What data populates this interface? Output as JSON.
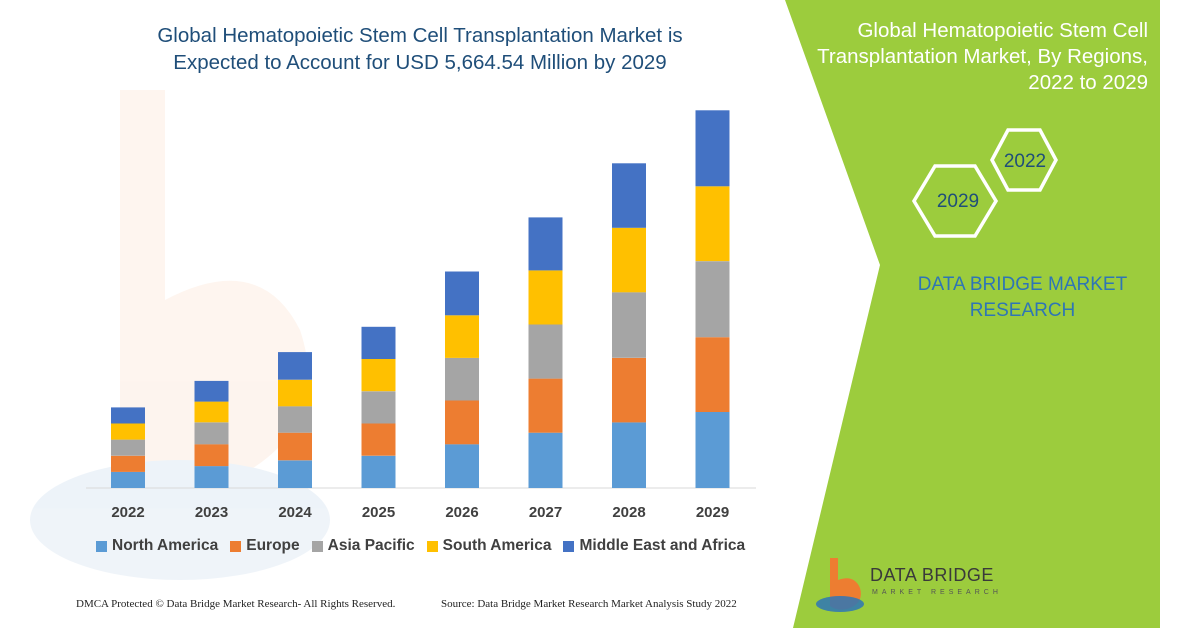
{
  "title_lines": [
    "Global Hematopoietic Stem Cell Transplantation Market is",
    "Expected to Account for USD 5,664.54 Million by 2029"
  ],
  "panel": {
    "title_lines": [
      "Global Hematopoietic Stem Cell",
      "Transplantation Market, By Regions,",
      "2022 to 2029"
    ],
    "hex_2022": "2022",
    "hex_2029": "2029",
    "brand_lines": [
      "DATA BRIDGE MARKET",
      "RESEARCH"
    ]
  },
  "logo": {
    "name": "DATA BRIDGE",
    "sub": "MARKET RESEARCH"
  },
  "footer": {
    "dmca": "DMCA Protected © Data Bridge Market Research- All Rights Reserved.",
    "source": "Source: Data Bridge Market Research Market Analysis Study 2022"
  },
  "colors": {
    "north_america": "#5b9bd5",
    "europe": "#ed7d31",
    "asia_pacific": "#a5a5a5",
    "south_america": "#ffc000",
    "middle_east_africa": "#4472c4",
    "panel_green": "#9ccc3d",
    "title_blue": "#1f4e79"
  },
  "chart_data": {
    "type": "bar",
    "stacked": true,
    "title": "Global Hematopoietic Stem Cell Transplantation Market is Expected to Account for USD 5,664.54 Million by 2029",
    "categories": [
      "2022",
      "2023",
      "2024",
      "2025",
      "2026",
      "2027",
      "2028",
      "2029"
    ],
    "ylim": [
      0,
      330
    ],
    "legend_position": "bottom",
    "grid": false,
    "series": [
      {
        "name": "North America",
        "values": [
          14,
          19,
          24,
          28,
          38,
          48,
          57,
          66
        ],
        "color": "#5b9bd5"
      },
      {
        "name": "Europe",
        "values": [
          14,
          19,
          24,
          28,
          38,
          47,
          56,
          65
        ],
        "color": "#ed7d31"
      },
      {
        "name": "Asia Pacific",
        "values": [
          14,
          19,
          23,
          28,
          37,
          47,
          57,
          66
        ],
        "color": "#a5a5a5"
      },
      {
        "name": "South America",
        "values": [
          14,
          18,
          23,
          28,
          37,
          47,
          56,
          65
        ],
        "color": "#ffc000"
      },
      {
        "name": "Middle East and Africa",
        "values": [
          14,
          18,
          24,
          28,
          38,
          46,
          56,
          66
        ],
        "color": "#4472c4"
      }
    ]
  }
}
